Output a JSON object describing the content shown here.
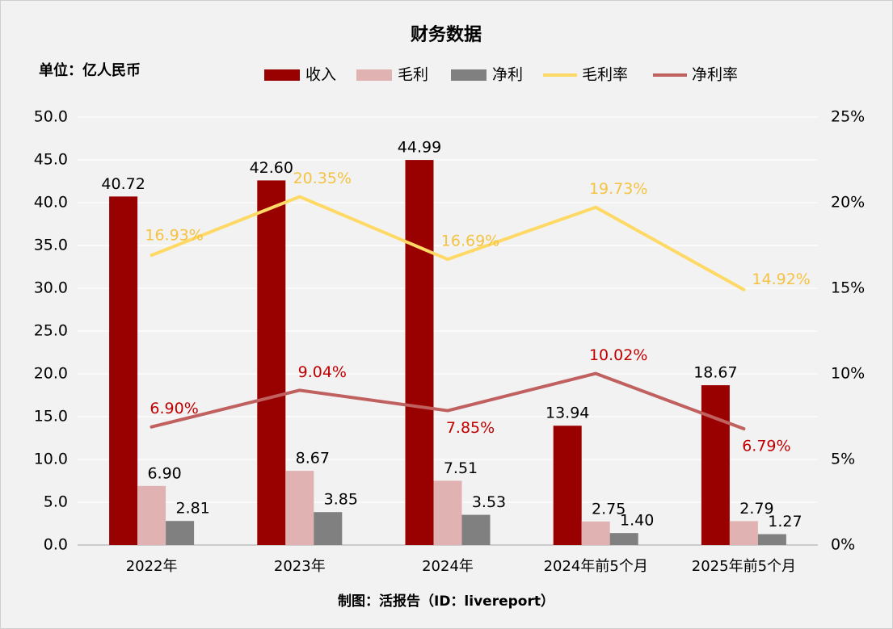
{
  "chart_data": {
    "type": "bar",
    "title": "财务数据",
    "unit_label": "单位：亿人民币",
    "footer": "制图：活报告（ID：livereport）",
    "categories": [
      "2022年",
      "2023年",
      "2024年",
      "2024年前5个月",
      "2025年前5个月"
    ],
    "y_left": {
      "min": 0,
      "max": 50,
      "step": 5,
      "ticks": [
        "0.0",
        "5.0",
        "10.0",
        "15.0",
        "20.0",
        "25.0",
        "30.0",
        "35.0",
        "40.0",
        "45.0",
        "50.0"
      ]
    },
    "y_right": {
      "min": 0,
      "max": 25,
      "step": 5,
      "ticks": [
        "0%",
        "5%",
        "10%",
        "15%",
        "20%",
        "25%"
      ]
    },
    "bar_series": [
      {
        "name": "收入",
        "color": "#990000",
        "values": [
          40.72,
          42.6,
          44.99,
          13.94,
          18.67
        ],
        "labels": [
          "40.72",
          "42.60",
          "44.99",
          "13.94",
          "18.67"
        ]
      },
      {
        "name": "毛利",
        "color": "#e0b2b2",
        "values": [
          6.9,
          8.67,
          7.51,
          2.75,
          2.79
        ],
        "labels": [
          "6.90",
          "8.67",
          "7.51",
          "2.75",
          "2.79"
        ]
      },
      {
        "name": "净利",
        "color": "#808080",
        "values": [
          2.81,
          3.85,
          3.53,
          1.4,
          1.27
        ],
        "labels": [
          "2.81",
          "3.85",
          "3.53",
          "1.40",
          "1.27"
        ]
      }
    ],
    "line_series": [
      {
        "name": "毛利率",
        "color": "#ffd966",
        "label_color": "#f5c242",
        "values": [
          16.93,
          20.35,
          16.69,
          19.73,
          14.92
        ],
        "labels": [
          "16.93%",
          "20.35%",
          "16.69%",
          "19.73%",
          "14.92%"
        ],
        "label_pos": [
          "below",
          "above",
          "above",
          "above",
          "right"
        ]
      },
      {
        "name": "净利率",
        "color": "#c0605f",
        "label_color": "#c00000",
        "values": [
          6.9,
          9.04,
          7.85,
          10.02,
          6.79
        ],
        "labels": [
          "6.90%",
          "9.04%",
          "7.85%",
          "10.02%",
          "6.79%"
        ],
        "label_pos": [
          "above",
          "above",
          "below",
          "above",
          "below"
        ]
      }
    ],
    "legend_position": "top-center",
    "grid": true
  }
}
